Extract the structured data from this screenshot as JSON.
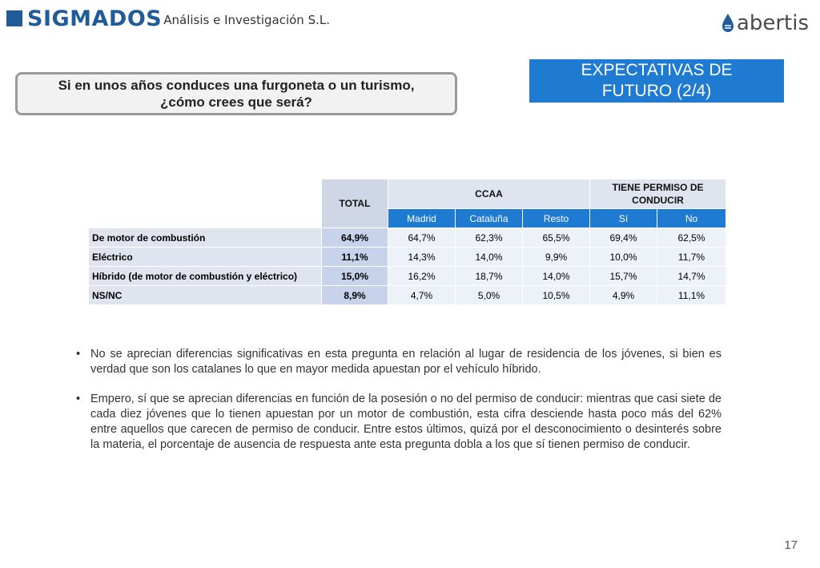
{
  "header": {
    "brand": "SIGMADOS",
    "brand_sub": "Análisis e Investigación S.L.",
    "partner": "abertis"
  },
  "question": "Si en unos años conduces una furgoneta o un turismo,\n¿cómo crees que será?",
  "title": "EXPECTATIVAS DE\nFUTURO (2/4)",
  "table": {
    "total_header": "TOTAL",
    "group_ccaa": "CCAA",
    "group_permiso": "TIENE PERMISO DE CONDUCIR",
    "sub_headers": [
      "Madrid",
      "Cataluña",
      "Resto",
      "Sí",
      "No"
    ],
    "rows": [
      {
        "label": "De motor de combustión",
        "values": [
          "64,9%",
          "64,7%",
          "62,3%",
          "65,5%",
          "69,4%",
          "62,5%"
        ]
      },
      {
        "label": "Eléctrico",
        "values": [
          "11,1%",
          "14,3%",
          "14,0%",
          "9,9%",
          "10,0%",
          "11,7%"
        ]
      },
      {
        "label": "Híbrido (de motor de combustión y eléctrico)",
        "values": [
          "15,0%",
          "16,2%",
          "18,7%",
          "14,0%",
          "15,7%",
          "14,7%"
        ]
      },
      {
        "label": "NS/NC",
        "values": [
          "8,9%",
          "4,7%",
          "5,0%",
          "10,5%",
          "4,9%",
          "11,1%"
        ]
      }
    ]
  },
  "bullets": [
    "No se aprecian diferencias significativas en esta pregunta en relación al lugar de residencia de los jóvenes, si bien es verdad que son los catalanes lo que en mayor medida apuestan por el vehículo híbrido.",
    "Empero, sí que se aprecian diferencias en función de la posesión o no del permiso de conducir: mientras que casi siete de cada diez jóvenes que lo tienen apuestan por un motor de combustión, esta cifra desciende hasta poco más del 62% entre aquellos que carecen de permiso de conducir. Entre estos últimos, quizá por el desconocimiento o desinterés sobre la materia, el porcentaje de ausencia de respuesta ante esta pregunta dobla a los que sí tienen permiso de conducir."
  ],
  "page_number": "17"
}
